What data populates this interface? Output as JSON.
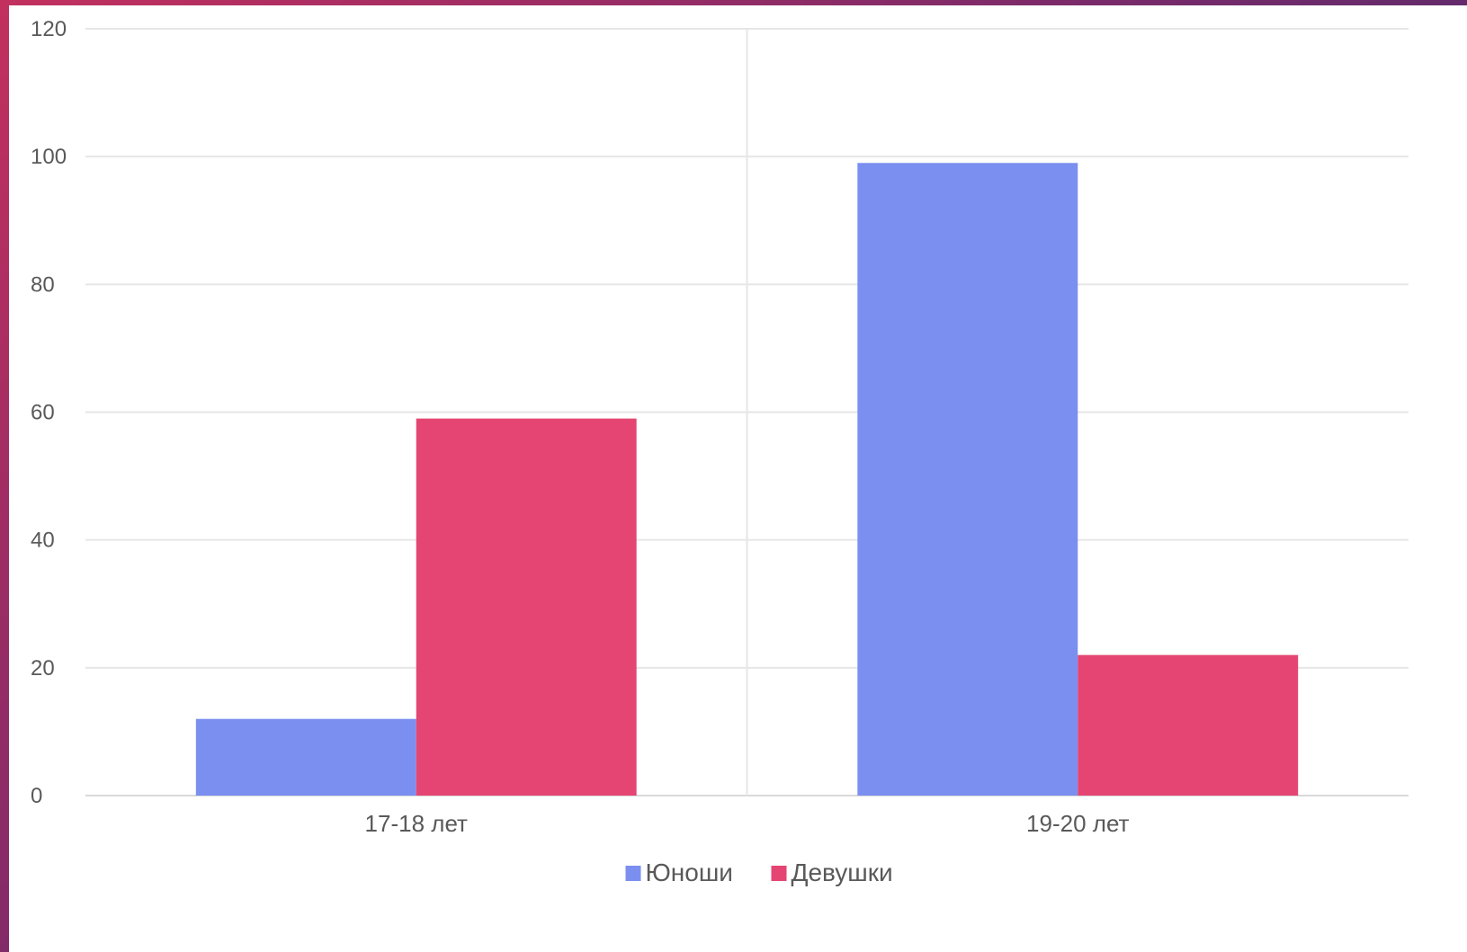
{
  "chart_data": {
    "type": "bar",
    "title": "",
    "xlabel": "",
    "ylabel": "",
    "categories": [
      "17-18 лет",
      "19-20 лет"
    ],
    "series": [
      {
        "name": "Юноши",
        "values": [
          12,
          99
        ],
        "color": "#7b8ff0"
      },
      {
        "name": "Девушки",
        "values": [
          59,
          22
        ],
        "color": "#e54572"
      }
    ],
    "ylim": [
      0,
      120
    ],
    "yticks": [
      "0",
      "20",
      "40",
      "60",
      "80",
      "100",
      "120"
    ],
    "grid": true,
    "legend_position": "bottom-center"
  }
}
